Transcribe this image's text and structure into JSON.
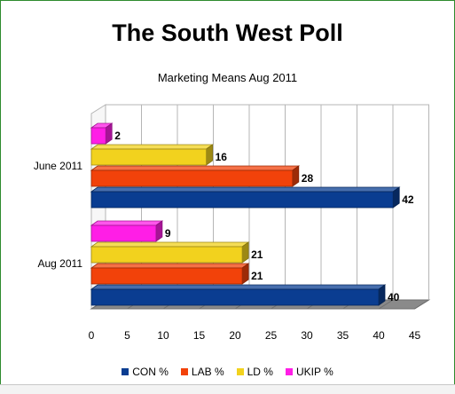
{
  "title": "The South West Poll",
  "subtitle": "Marketing Means Aug 2011",
  "chart_data": {
    "type": "bar",
    "orientation": "horizontal",
    "three_d": true,
    "title": "The South West Poll",
    "subtitle": "Marketing Means Aug 2011",
    "categories": [
      "June 2011",
      "Aug 2011"
    ],
    "series": [
      {
        "name": "CON %",
        "color": "#0a3d91",
        "values": [
          42,
          40
        ]
      },
      {
        "name": "LAB %",
        "color": "#f2420a",
        "values": [
          28,
          21
        ]
      },
      {
        "name": "LD %",
        "color": "#f2d21e",
        "values": [
          16,
          21
        ]
      },
      {
        "name": "UKIP %",
        "color": "#ff1ee6",
        "values": [
          2,
          9
        ]
      }
    ],
    "xlim": [
      0,
      45
    ],
    "xticks": [
      "0",
      "5",
      "10",
      "15",
      "20",
      "25",
      "30",
      "35",
      "40",
      "45"
    ],
    "grid": true,
    "legend_position": "bottom",
    "data_labels": true
  }
}
